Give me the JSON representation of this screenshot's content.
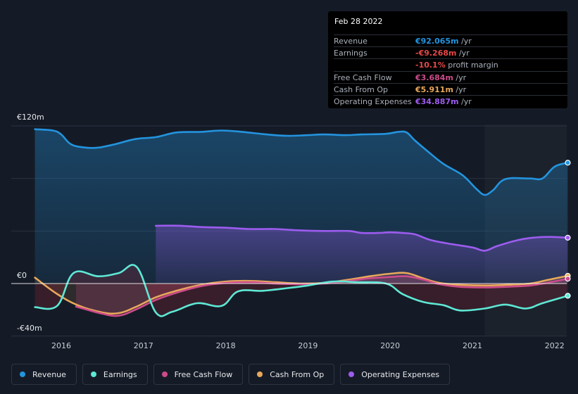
{
  "tooltip": {
    "date": "Feb 28 2022",
    "rows": [
      {
        "label": "Revenue",
        "value": "€92.065m",
        "unit": " /yr",
        "color": "#2394df"
      },
      {
        "label": "Earnings",
        "value": "-€9.268m",
        "unit": " /yr",
        "color": "#e64848"
      },
      {
        "label": "",
        "value": "-10.1%",
        "unit": " profit margin",
        "color": "#e64848"
      },
      {
        "label": "Free Cash Flow",
        "value": "€3.684m",
        "unit": " /yr",
        "color": "#cc4b8a"
      },
      {
        "label": "Cash From Op",
        "value": "€5.911m",
        "unit": " /yr",
        "color": "#e8a85b"
      },
      {
        "label": "Operating Expenses",
        "value": "€34.887m",
        "unit": " /yr",
        "color": "#9d5cf0"
      }
    ]
  },
  "legend": [
    {
      "label": "Revenue",
      "color": "#2394df"
    },
    {
      "label": "Earnings",
      "color": "#5ee8d5"
    },
    {
      "label": "Free Cash Flow",
      "color": "#cc4b8a"
    },
    {
      "label": "Cash From Op",
      "color": "#e8a85b"
    },
    {
      "label": "Operating Expenses",
      "color": "#9d5cf0"
    }
  ],
  "chart_data": {
    "type": "area",
    "y_tick_labels": [
      "€120m",
      "€0",
      "-€40m"
    ],
    "ylim": [
      -40,
      120
    ],
    "x_tick_labels": [
      "2016",
      "2017",
      "2018",
      "2019",
      "2020",
      "2021",
      "2022"
    ],
    "x_ticks": [
      2016,
      2017,
      2018,
      2019,
      2020,
      2021,
      2022
    ],
    "xlim": [
      2015.6,
      2022.16
    ],
    "forecast_start": 2021.15,
    "series": [
      {
        "name": "Revenue",
        "color": "#2394df",
        "x": [
          2015.68,
          2015.9,
          2016.0,
          2016.12,
          2016.3,
          2016.45,
          2016.65,
          2016.9,
          2017.15,
          2017.4,
          2017.7,
          2017.95,
          2018.2,
          2018.5,
          2018.75,
          2019.0,
          2019.2,
          2019.45,
          2019.65,
          2019.95,
          2020.1,
          2020.2,
          2020.3,
          2020.45,
          2020.65,
          2020.88,
          2021.05,
          2021.15,
          2021.25,
          2021.4,
          2021.7,
          2021.85,
          2022.0,
          2022.16
        ],
        "values": [
          117.5,
          116.5,
          113.5,
          106,
          103.5,
          103.5,
          106,
          110,
          111.5,
          115,
          115.5,
          116.5,
          115.5,
          113.5,
          112.5,
          113,
          113.5,
          113,
          113.5,
          114,
          115.5,
          115,
          109,
          101,
          91,
          82.5,
          72,
          67.5,
          71,
          79.5,
          80,
          80,
          89,
          92
        ]
      },
      {
        "name": "Earnings",
        "color": "#5ee8d5",
        "x": [
          2015.68,
          2015.95,
          2016.15,
          2016.45,
          2016.7,
          2016.92,
          2017.15,
          2017.35,
          2017.65,
          2017.95,
          2018.15,
          2018.45,
          2018.75,
          2019.0,
          2019.3,
          2019.6,
          2019.95,
          2020.15,
          2020.4,
          2020.65,
          2020.85,
          2021.15,
          2021.4,
          2021.65,
          2021.85,
          2022.16
        ],
        "values": [
          -18,
          -17,
          8,
          5.5,
          8,
          12.5,
          -22,
          -21.5,
          -15,
          -17,
          -6,
          -5.5,
          -3.5,
          -1.5,
          1.5,
          1,
          0,
          -8,
          -14,
          -16.5,
          -20.5,
          -19,
          -16,
          -19,
          -15,
          -9.3
        ]
      },
      {
        "name": "Free Cash Flow",
        "color": "#cc4b8a",
        "x": [
          2016.18,
          2016.5,
          2016.7,
          2016.9,
          2017.15,
          2017.4,
          2017.7,
          2018.0,
          2018.3,
          2018.6,
          2018.9,
          2019.2,
          2019.5,
          2019.75,
          2020.0,
          2020.2,
          2020.4,
          2020.6,
          2020.85,
          2021.15,
          2021.4,
          2021.7,
          2021.9,
          2022.16
        ],
        "values": [
          -17.5,
          -23,
          -24.5,
          -20,
          -12.5,
          -7,
          -2,
          0.5,
          1,
          0,
          -0.5,
          0,
          2,
          4,
          5,
          5.5,
          3,
          -0.5,
          -2.5,
          -3,
          -2.5,
          -1.5,
          0.5,
          3.7
        ]
      },
      {
        "name": "Cash From Op",
        "color": "#e8a85b",
        "x": [
          2015.68,
          2015.95,
          2016.2,
          2016.5,
          2016.7,
          2016.9,
          2017.15,
          2017.4,
          2017.7,
          2018.0,
          2018.3,
          2018.6,
          2018.9,
          2019.2,
          2019.5,
          2019.75,
          2020.0,
          2020.2,
          2020.4,
          2020.6,
          2020.85,
          2021.15,
          2021.4,
          2021.7,
          2021.9,
          2022.16
        ],
        "values": [
          4.5,
          -8,
          -16.5,
          -22,
          -22.5,
          -18,
          -10.5,
          -5.5,
          -1,
          1.5,
          2,
          1,
          0,
          0.5,
          3,
          5.5,
          7.5,
          8,
          4,
          0.5,
          -1,
          -1.5,
          -1,
          0,
          2.5,
          5.9
        ]
      },
      {
        "name": "Operating Expenses",
        "color": "#9d5cf0",
        "x": [
          2017.15,
          2017.45,
          2017.7,
          2018.0,
          2018.3,
          2018.6,
          2018.9,
          2019.2,
          2019.5,
          2019.65,
          2019.85,
          2020.0,
          2020.15,
          2020.3,
          2020.5,
          2020.75,
          2021.0,
          2021.15,
          2021.3,
          2021.55,
          2021.75,
          2021.95,
          2022.16
        ],
        "values": [
          44,
          44,
          43,
          42.5,
          41.5,
          41.5,
          40.5,
          40,
          40,
          38.5,
          38.5,
          39,
          38.5,
          37.5,
          33,
          30,
          27.5,
          25,
          28.5,
          33,
          35,
          35.5,
          34.9
        ]
      }
    ]
  }
}
